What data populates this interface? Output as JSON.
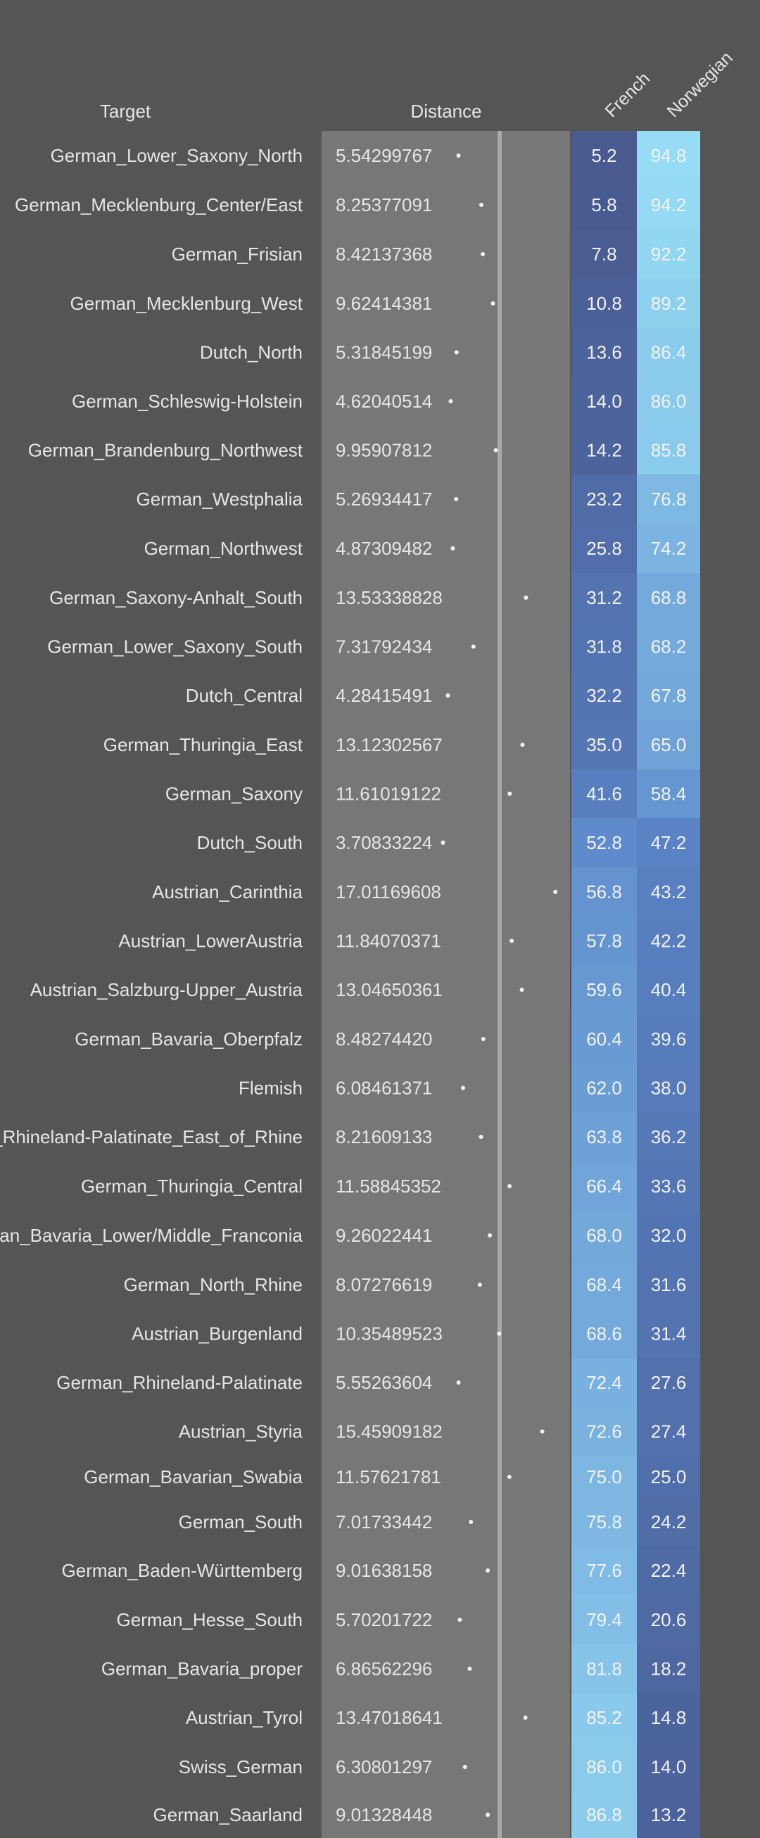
{
  "chart_data": {
    "type": "table",
    "headers": {
      "target": "Target",
      "distance": "Distance",
      "french": "French",
      "norwegian": "Norwegian"
    },
    "colors": {
      "background": "#555555",
      "distance_panel": "#777777",
      "distance_axis": "#aaaaaa",
      "text": "#e6e6e6",
      "heat_low": "#485a8f",
      "heat_mid": "#5b86c9",
      "heat_high": "#96dcf5"
    },
    "distance_range": [
      0,
      27
    ],
    "rows": [
      {
        "target": "German_Lower_Saxony_North",
        "distance": "5.54299767",
        "french": "5.2",
        "norwegian": "94.8"
      },
      {
        "target": "German_Mecklenburg_Center/East",
        "distance": "8.25377091",
        "french": "5.8",
        "norwegian": "94.2"
      },
      {
        "target": "German_Frisian",
        "distance": "8.42137368",
        "french": "7.8",
        "norwegian": "92.2"
      },
      {
        "target": "German_Mecklenburg_West",
        "distance": "9.62414381",
        "french": "10.8",
        "norwegian": "89.2"
      },
      {
        "target": "Dutch_North",
        "distance": "5.31845199",
        "french": "13.6",
        "norwegian": "86.4"
      },
      {
        "target": "German_Schleswig-Holstein",
        "distance": "4.62040514",
        "french": "14.0",
        "norwegian": "86.0"
      },
      {
        "target": "German_Brandenburg_Northwest",
        "distance": "9.95907812",
        "french": "14.2",
        "norwegian": "85.8"
      },
      {
        "target": "German_Westphalia",
        "distance": "5.26934417",
        "french": "23.2",
        "norwegian": "76.8"
      },
      {
        "target": "German_Northwest",
        "distance": "4.87309482",
        "french": "25.8",
        "norwegian": "74.2"
      },
      {
        "target": "German_Saxony-Anhalt_South",
        "distance": "13.53338828",
        "french": "31.2",
        "norwegian": "68.8"
      },
      {
        "target": "German_Lower_Saxony_South",
        "distance": "7.31792434",
        "french": "31.8",
        "norwegian": "68.2"
      },
      {
        "target": "Dutch_Central",
        "distance": "4.28415491",
        "french": "32.2",
        "norwegian": "67.8"
      },
      {
        "target": "German_Thuringia_East",
        "distance": "13.12302567",
        "french": "35.0",
        "norwegian": "65.0"
      },
      {
        "target": "German_Saxony",
        "distance": "11.61019122",
        "french": "41.6",
        "norwegian": "58.4"
      },
      {
        "target": "Dutch_South",
        "distance": "3.70833224",
        "french": "52.8",
        "norwegian": "47.2"
      },
      {
        "target": "Austrian_Carinthia",
        "distance": "17.01169608",
        "french": "56.8",
        "norwegian": "43.2"
      },
      {
        "target": "Austrian_LowerAustria",
        "distance": "11.84070371",
        "french": "57.8",
        "norwegian": "42.2"
      },
      {
        "target": "Austrian_Salzburg-Upper_Austria",
        "distance": "13.04650361",
        "french": "59.6",
        "norwegian": "40.4"
      },
      {
        "target": "German_Bavaria_Oberpfalz",
        "distance": "8.48274420",
        "french": "60.4",
        "norwegian": "39.6"
      },
      {
        "target": "Flemish",
        "distance": "6.08461371",
        "french": "62.0",
        "norwegian": "38.0"
      },
      {
        "target": "German_Rhineland-Palatinate_East_of_Rhine",
        "distance": "8.21609133",
        "french": "63.8",
        "norwegian": "36.2"
      },
      {
        "target": "German_Thuringia_Central",
        "distance": "11.58845352",
        "french": "66.4",
        "norwegian": "33.6"
      },
      {
        "target": "German_Bavaria_Lower/Middle_Franconia",
        "distance": "9.26022441",
        "french": "68.0",
        "norwegian": "32.0"
      },
      {
        "target": "German_North_Rhine",
        "distance": "8.07276619",
        "french": "68.4",
        "norwegian": "31.6"
      },
      {
        "target": "Austrian_Burgenland",
        "distance": "10.35489523",
        "french": "68.6",
        "norwegian": "31.4"
      },
      {
        "target": "German_Rhineland-Palatinate",
        "distance": "5.55263604",
        "french": "72.4",
        "norwegian": "27.6"
      },
      {
        "target": "Austrian_Styria",
        "distance": "15.45909182",
        "french": "72.6",
        "norwegian": "27.4"
      },
      {
        "target": "German_Bavarian_Swabia",
        "distance": "11.57621781",
        "french": "75.0",
        "norwegian": "25.0"
      },
      {
        "target": "German_South",
        "distance": "7.01733442",
        "french": "75.8",
        "norwegian": "24.2"
      },
      {
        "target": "German_Baden-Württemberg",
        "distance": "9.01638158",
        "french": "77.6",
        "norwegian": "22.4"
      },
      {
        "target": "German_Hesse_South",
        "distance": "5.70201722",
        "french": "79.4",
        "norwegian": "20.6"
      },
      {
        "target": "German_Bavaria_proper",
        "distance": "6.86562296",
        "french": "81.8",
        "norwegian": "18.2"
      },
      {
        "target": "Austrian_Tyrol",
        "distance": "13.47018641",
        "french": "85.2",
        "norwegian": "14.8"
      },
      {
        "target": "Swiss_German",
        "distance": "6.30801297",
        "french": "86.0",
        "norwegian": "14.0"
      },
      {
        "target": "German_Saarland",
        "distance": "9.01328448",
        "french": "86.8",
        "norwegian": "13.2"
      }
    ]
  }
}
